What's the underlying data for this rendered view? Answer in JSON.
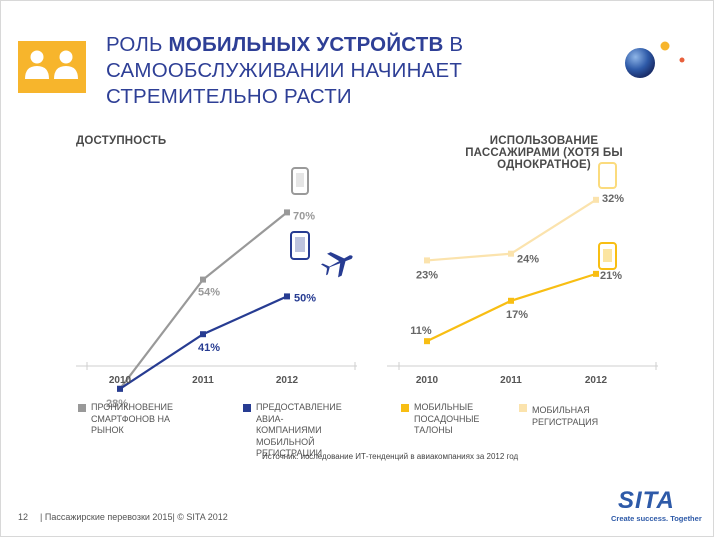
{
  "title": {
    "line1_plain": "РОЛЬ ",
    "line1_bold": "МОБИЛЬНЫХ УСТРОЙСТВ",
    "line1_end": " В",
    "line2": "САМООБСЛУЖИВАНИИ НАЧИНАЕТ",
    "line3": "СТРЕМИТЕЛЬНО РАСТИ"
  },
  "colors": {
    "gray": "#999999",
    "navy": "#273c92",
    "yellow": "#f8be13",
    "pale": "#fbe3ad",
    "title": "#2e3f96",
    "accent": "#f7b52c"
  },
  "chart_data": [
    {
      "type": "line",
      "title": "ДОСТУПНОСТЬ",
      "categories": [
        "2010",
        "2011",
        "2012"
      ],
      "series": [
        {
          "name": "ПРОНИКНОВЕНИЕ СМАРТФОНОВ НА РЫНОК",
          "values": [
            28,
            54,
            70
          ],
          "labels": [
            "28%",
            "54%",
            "70%"
          ]
        },
        {
          "name": "ПРЕДОСТАВЛЕНИЕ АВИА-КОМПАНИЯМИ МОБИЛЬНОЙ РЕГИСТРАЦИИ",
          "values": [
            28,
            41,
            50
          ],
          "labels": [
            "",
            "41%",
            "50%"
          ]
        }
      ]
    },
    {
      "type": "line",
      "title": "ИСПОЛЬЗОВАНИЕ ПАССАЖИРАМИ (ХОТЯ БЫ ОДНОКРАТНОЕ)",
      "categories": [
        "2010",
        "2011",
        "2012"
      ],
      "series": [
        {
          "name": "МОБИЛЬНАЯ РЕГИСТРАЦИЯ",
          "values": [
            23,
            24,
            32
          ],
          "labels": [
            "23%",
            "24%",
            "32%"
          ]
        },
        {
          "name": "МОБИЛЬНЫЕ ПОСАДОЧНЫЕ ТАЛОНЫ",
          "values": [
            11,
            17,
            21
          ],
          "labels": [
            "11%",
            "17%",
            "21%"
          ]
        }
      ]
    }
  ],
  "legend": [
    {
      "color": "#999999",
      "line1": "ПРОНИКНОВЕНИЕ",
      "line2": "СМАРТФОНОВ НА РЫНОК",
      "line3": ""
    },
    {
      "color": "#273c92",
      "line1": "ПРЕДОСТАВЛЕНИЕ АВИА-",
      "line2": "КОМПАНИЯМИ МОБИЛЬНОЙ",
      "line3": "РЕГИСТРАЦИИ"
    },
    {
      "color": "#f8be13",
      "line1": "МОБИЛЬНЫЕ",
      "line2": "ПОСАДОЧНЫЕ",
      "line3": "ТАЛОНЫ"
    },
    {
      "color": "#fbe3ad",
      "line1": "МОБИЛЬНАЯ РЕГИСТРАЦИЯ",
      "line2": "",
      "line3": ""
    }
  ],
  "source": "Источник: исследование ИТ-тенденций в авиакомпаниях за 2012 год",
  "footer": {
    "page": "12",
    "text": "| Пассажирские перевозки 2015| © SITA 2012"
  },
  "brand": {
    "logo": "SITA",
    "tagline": "Create success. Together"
  }
}
